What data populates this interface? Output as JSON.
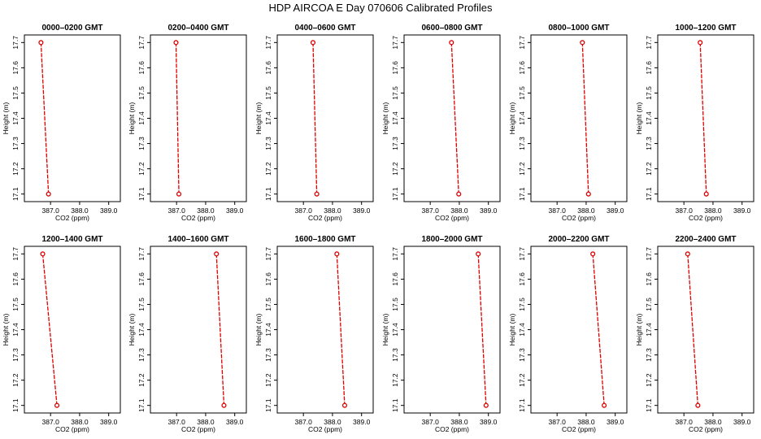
{
  "page_title": "HDP  AIRCOA E  Day 070606  Calibrated Profiles",
  "chart_data": {
    "type": "line",
    "markers": "open-circle",
    "line_style": "dashed",
    "series_color": "#e00000",
    "xlabel": "CO2 (ppm)",
    "ylabel": "Height (m)",
    "xlim": [
      386.1,
      389.4
    ],
    "ylim": [
      17.07,
      17.73
    ],
    "xticks": [
      387.0,
      388.0,
      389.0
    ],
    "xtick_labels": [
      "387.0",
      "388.0",
      "389.0"
    ],
    "yticks": [
      17.1,
      17.2,
      17.3,
      17.4,
      17.5,
      17.6,
      17.7
    ],
    "ytick_labels": [
      "17.1",
      "17.2",
      "17.3",
      "17.4",
      "17.5",
      "17.6",
      "17.7"
    ],
    "panels": [
      {
        "title": "0000–0200 GMT",
        "points": [
          {
            "x": 386.67,
            "y": 17.7
          },
          {
            "x": 386.93,
            "y": 17.1
          }
        ]
      },
      {
        "title": "0200–0400 GMT",
        "points": [
          {
            "x": 386.98,
            "y": 17.7
          },
          {
            "x": 387.08,
            "y": 17.1
          }
        ]
      },
      {
        "title": "0400–0600 GMT",
        "points": [
          {
            "x": 387.33,
            "y": 17.7
          },
          {
            "x": 387.46,
            "y": 17.1
          }
        ]
      },
      {
        "title": "0600–0800 GMT",
        "points": [
          {
            "x": 387.73,
            "y": 17.7
          },
          {
            "x": 387.98,
            "y": 17.1
          }
        ]
      },
      {
        "title": "0800–1000 GMT",
        "points": [
          {
            "x": 387.87,
            "y": 17.7
          },
          {
            "x": 388.08,
            "y": 17.1
          }
        ]
      },
      {
        "title": "1000–1200 GMT",
        "points": [
          {
            "x": 387.56,
            "y": 17.7
          },
          {
            "x": 387.77,
            "y": 17.1
          }
        ]
      },
      {
        "title": "1200–1400 GMT",
        "points": [
          {
            "x": 386.73,
            "y": 17.7
          },
          {
            "x": 387.22,
            "y": 17.1
          }
        ]
      },
      {
        "title": "1400–1600 GMT",
        "points": [
          {
            "x": 388.37,
            "y": 17.7
          },
          {
            "x": 388.63,
            "y": 17.1
          }
        ]
      },
      {
        "title": "1600–1800 GMT",
        "points": [
          {
            "x": 388.15,
            "y": 17.7
          },
          {
            "x": 388.42,
            "y": 17.1
          }
        ]
      },
      {
        "title": "1800–2000 GMT",
        "points": [
          {
            "x": 388.65,
            "y": 17.7
          },
          {
            "x": 388.92,
            "y": 17.1
          }
        ]
      },
      {
        "title": "2000–2200 GMT",
        "points": [
          {
            "x": 388.23,
            "y": 17.7
          },
          {
            "x": 388.62,
            "y": 17.1
          }
        ]
      },
      {
        "title": "2200–2400 GMT",
        "points": [
          {
            "x": 387.13,
            "y": 17.7
          },
          {
            "x": 387.48,
            "y": 17.1
          }
        ]
      }
    ]
  }
}
